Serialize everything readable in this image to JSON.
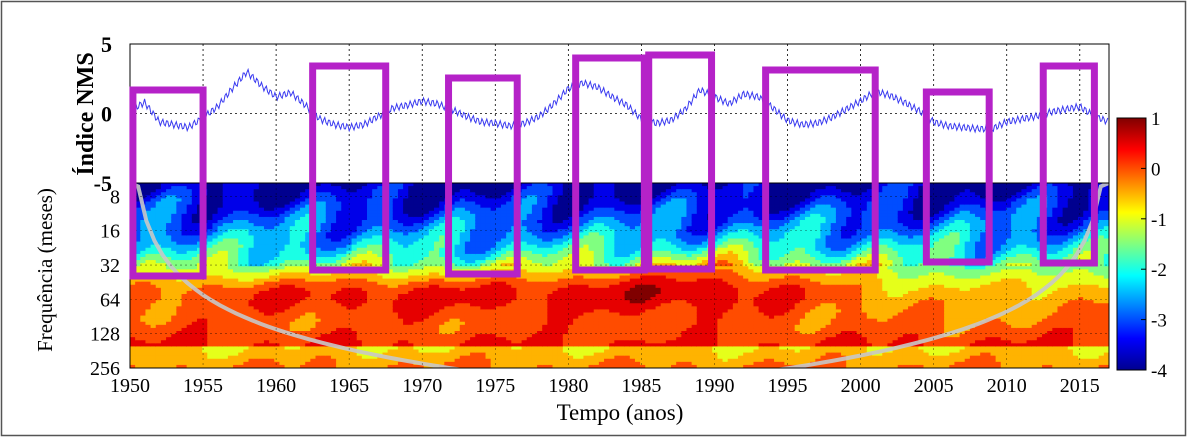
{
  "chart_data": [
    {
      "type": "line",
      "ylabel": "Índice NMS",
      "ylim": [
        -5,
        5
      ],
      "y_ticks": [
        "5",
        "0",
        "-5"
      ],
      "xlim": [
        1950,
        2017
      ],
      "grid": true,
      "line_color": "#3a3af0",
      "series": [
        {
          "x": [
            1950,
            1951,
            1952,
            1953,
            1954,
            1955,
            1956,
            1957,
            1958,
            1959,
            1960,
            1961,
            1962,
            1963,
            1964,
            1965,
            1966,
            1967,
            1968,
            1969,
            1970,
            1971,
            1972,
            1973,
            1974,
            1975,
            1976,
            1977,
            1978,
            1979,
            1980,
            1981,
            1982,
            1983,
            1984,
            1985,
            1986,
            1987,
            1988,
            1989,
            1990,
            1991,
            1992,
            1993,
            1994,
            1995,
            1996,
            1997,
            1998,
            1999,
            2000,
            2001,
            2002,
            2003,
            2004,
            2005,
            2006,
            2007,
            2008,
            2009,
            2010,
            2011,
            2012,
            2013,
            2014,
            2015,
            2016,
            2017
          ],
          "values": [
            0.2,
            0.8,
            -0.6,
            -0.8,
            -1.0,
            -0.3,
            0.5,
            1.8,
            3.0,
            2.0,
            1.2,
            1.5,
            0.6,
            -0.4,
            -0.8,
            -1.0,
            -0.8,
            -0.2,
            0.4,
            0.6,
            0.9,
            0.7,
            0.3,
            -0.2,
            -0.6,
            -0.7,
            -0.9,
            -0.7,
            -0.2,
            0.7,
            1.8,
            2.2,
            1.9,
            1.2,
            0.6,
            -0.4,
            -0.7,
            -0.5,
            0.3,
            1.7,
            1.2,
            0.7,
            1.4,
            1.2,
            0.4,
            -0.5,
            -0.8,
            -0.7,
            -0.3,
            0.3,
            0.9,
            1.6,
            1.3,
            0.8,
            0.2,
            -0.6,
            -0.9,
            -1.0,
            -1.1,
            -1.1,
            -0.6,
            -0.4,
            -0.2,
            0.1,
            0.3,
            0.5,
            -0.2,
            -0.6
          ]
        }
      ]
    },
    {
      "type": "heatmap",
      "ylabel": "Frequência (meses)",
      "xlabel": "Tempo (anos)",
      "xlim": [
        1950,
        2017
      ],
      "x_ticks": [
        "1950",
        "1955",
        "1960",
        "1965",
        "1970",
        "1975",
        "1980",
        "1985",
        "1990",
        "1995",
        "2000",
        "2005",
        "2010",
        "2015"
      ],
      "y_scale": "log2",
      "y_ticks": [
        "8",
        "16",
        "32",
        "64",
        "128",
        "256"
      ],
      "colorbar": {
        "min": -4,
        "max": 1,
        "ticks": [
          "1",
          "0",
          "-1",
          "-2",
          "-3",
          "-4"
        ],
        "colormap": "jet"
      },
      "cone_of_influence_color": "#c8c8c8",
      "highlight_boxes": {
        "color": "#b522c8",
        "year_ranges": [
          [
            1950.2,
            1955.0
          ],
          [
            1962.5,
            1967.5
          ],
          [
            1971.8,
            1976.5
          ],
          [
            1980.5,
            1985.2
          ],
          [
            1985.5,
            1989.8
          ],
          [
            1993.5,
            2001.0
          ],
          [
            2004.5,
            2008.8
          ],
          [
            2012.5,
            2016.0
          ]
        ]
      }
    }
  ]
}
